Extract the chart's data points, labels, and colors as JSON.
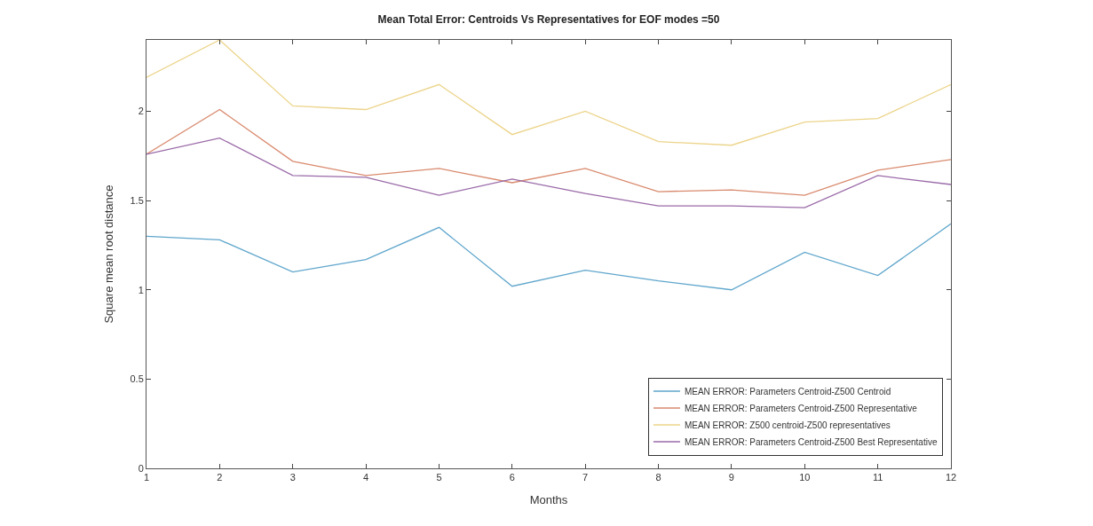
{
  "chart_data": {
    "type": "line",
    "title": "Mean Total Error: Centroids Vs Representatives for EOF modes =50",
    "xlabel": "Months",
    "ylabel": "Square mean root distance",
    "x": [
      1,
      2,
      3,
      4,
      5,
      6,
      7,
      8,
      9,
      10,
      11,
      12
    ],
    "series": [
      {
        "name": "MEAN ERROR: Parameters Centroid-Z500 Centroid",
        "color": "#5fa6cc",
        "values": [
          1.3,
          1.28,
          1.1,
          1.17,
          1.35,
          1.02,
          1.11,
          1.05,
          1.0,
          1.21,
          1.08,
          1.37
        ]
      },
      {
        "name": "MEAN ERROR: Parameters Centroid-Z500 Representative",
        "color": "#d98a6e",
        "values": [
          1.76,
          2.01,
          1.72,
          1.64,
          1.68,
          1.6,
          1.68,
          1.55,
          1.56,
          1.53,
          1.67,
          1.73
        ]
      },
      {
        "name": "MEAN ERROR: Z500 centroid-Z500 representatives",
        "color": "#ecd48a",
        "values": [
          2.19,
          2.4,
          2.03,
          2.01,
          2.15,
          1.87,
          2.0,
          1.83,
          1.81,
          1.94,
          1.96,
          2.15
        ]
      },
      {
        "name": "MEAN ERROR: Parameters Centroid-Z500 Best Representative",
        "color": "#9a6aa8",
        "values": [
          1.76,
          1.85,
          1.64,
          1.63,
          1.53,
          1.62,
          1.54,
          1.47,
          1.47,
          1.46,
          1.64,
          1.59
        ]
      }
    ],
    "xlim": [
      1,
      12
    ],
    "xticks": [
      1,
      2,
      3,
      4,
      5,
      6,
      7,
      8,
      9,
      10,
      11,
      12
    ],
    "ylim": [
      0,
      2.4
    ],
    "yticks": [
      0,
      0.5,
      1,
      1.5,
      2
    ],
    "legend": "bottom right",
    "marker": "none",
    "line_style": "solid"
  }
}
